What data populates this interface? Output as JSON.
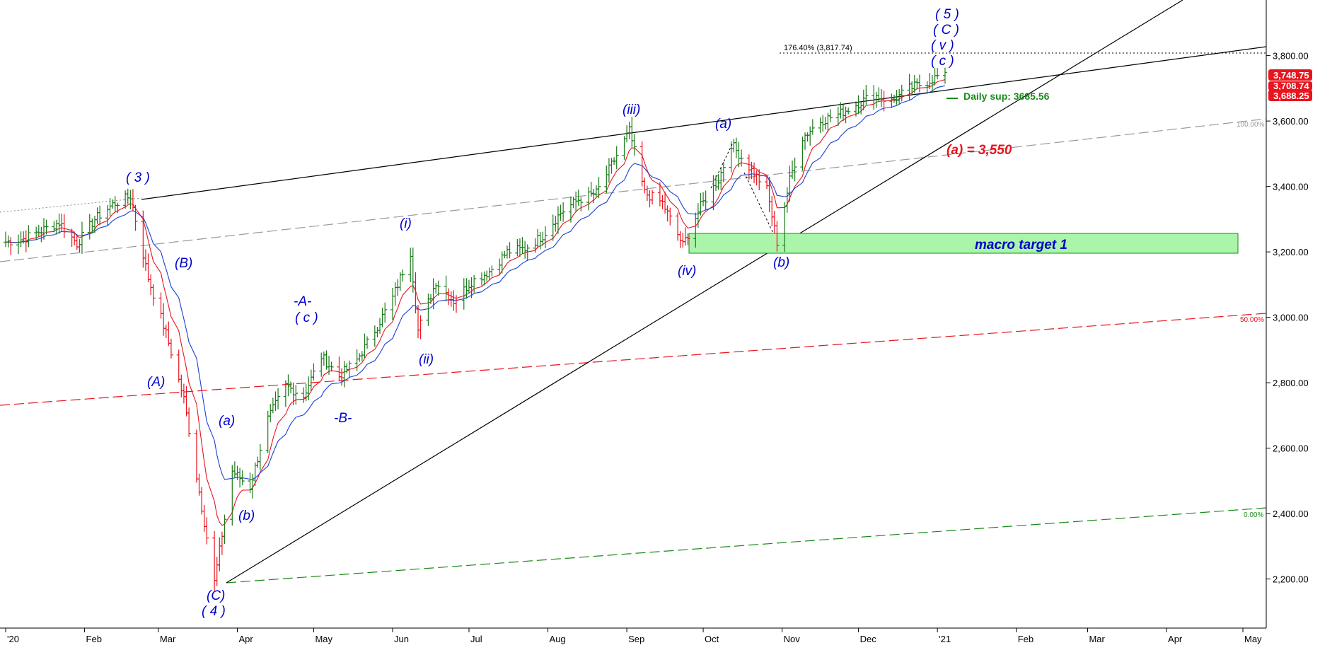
{
  "chart_data": {
    "type": "candlestick",
    "title": "",
    "x_axis": {
      "labels": [
        "'20",
        "Feb",
        "Mar",
        "Apr",
        "May",
        "Jun",
        "Jul",
        "Aug",
        "Sep",
        "Oct",
        "Nov",
        "Dec",
        "'21",
        "Feb",
        "Mar",
        "Apr",
        "May"
      ],
      "dates": [
        "2020-01-01",
        "2020-02-01",
        "2020-03-01",
        "2020-04-01",
        "2020-05-01",
        "2020-06-01",
        "2020-07-01",
        "2020-08-01",
        "2020-09-01",
        "2020-10-01",
        "2020-11-01",
        "2020-12-01",
        "2021-01-01",
        "2021-02-01",
        "2021-03-01",
        "2021-04-01",
        "2021-05-01"
      ]
    },
    "y_axis": {
      "ticks": [
        "2,200.00",
        "2,400.00",
        "2,600.00",
        "2,800.00",
        "3,000.00",
        "3,200.00",
        "3,400.00",
        "3,600.00",
        "3,800.00"
      ],
      "tick_values": [
        2200,
        2400,
        2600,
        2800,
        3000,
        3200,
        3400,
        3600,
        3800
      ],
      "range": [
        2050,
        3970
      ]
    },
    "price_labels": [
      {
        "text": "3,748.75",
        "value": 3748.75,
        "color": "#e8141e"
      },
      {
        "text": "3,708.74",
        "value": 3708.74,
        "color": "#e8141e"
      },
      {
        "text": "3,688.25",
        "value": 3688.25,
        "color": "#e8141e"
      }
    ],
    "series": [
      {
        "date": "2020-01-01",
        "close": 3230
      },
      {
        "date": "2020-01-08",
        "close": 3240
      },
      {
        "date": "2020-01-15",
        "close": 3265
      },
      {
        "date": "2020-01-22",
        "close": 3290
      },
      {
        "date": "2020-01-29",
        "close": 3225
      },
      {
        "date": "2020-02-05",
        "close": 3300
      },
      {
        "date": "2020-02-12",
        "close": 3345
      },
      {
        "date": "2020-02-19",
        "close": 3370
      },
      {
        "date": "2020-02-26",
        "close": 3120
      },
      {
        "date": "2020-03-04",
        "close": 2950
      },
      {
        "date": "2020-03-11",
        "close": 2750
      },
      {
        "date": "2020-03-18",
        "close": 2420
      },
      {
        "date": "2020-03-23",
        "close": 2190
      },
      {
        "date": "2020-03-30",
        "close": 2530
      },
      {
        "date": "2020-04-06",
        "close": 2480
      },
      {
        "date": "2020-04-13",
        "close": 2690
      },
      {
        "date": "2020-04-20",
        "close": 2790
      },
      {
        "date": "2020-04-27",
        "close": 2760
      },
      {
        "date": "2020-05-04",
        "close": 2880
      },
      {
        "date": "2020-05-11",
        "close": 2820
      },
      {
        "date": "2020-05-18",
        "close": 2870
      },
      {
        "date": "2020-05-25",
        "close": 2960
      },
      {
        "date": "2020-06-01",
        "close": 3060
      },
      {
        "date": "2020-06-08",
        "close": 3200
      },
      {
        "date": "2020-06-11",
        "close": 2960
      },
      {
        "date": "2020-06-18",
        "close": 3110
      },
      {
        "date": "2020-06-25",
        "close": 3050
      },
      {
        "date": "2020-07-02",
        "close": 3110
      },
      {
        "date": "2020-07-09",
        "close": 3140
      },
      {
        "date": "2020-07-16",
        "close": 3200
      },
      {
        "date": "2020-07-23",
        "close": 3210
      },
      {
        "date": "2020-07-30",
        "close": 3250
      },
      {
        "date": "2020-08-06",
        "close": 3320
      },
      {
        "date": "2020-08-13",
        "close": 3360
      },
      {
        "date": "2020-08-20",
        "close": 3380
      },
      {
        "date": "2020-08-27",
        "close": 3480
      },
      {
        "date": "2020-09-02",
        "close": 3570
      },
      {
        "date": "2020-09-08",
        "close": 3380
      },
      {
        "date": "2020-09-15",
        "close": 3350
      },
      {
        "date": "2020-09-23",
        "close": 3220
      },
      {
        "date": "2020-09-30",
        "close": 3340
      },
      {
        "date": "2020-10-07",
        "close": 3420
      },
      {
        "date": "2020-10-12",
        "close": 3530
      },
      {
        "date": "2020-10-19",
        "close": 3460
      },
      {
        "date": "2020-10-26",
        "close": 3390
      },
      {
        "date": "2020-10-30",
        "close": 3230
      },
      {
        "date": "2020-11-04",
        "close": 3420
      },
      {
        "date": "2020-11-09",
        "close": 3550
      },
      {
        "date": "2020-11-16",
        "close": 3600
      },
      {
        "date": "2020-11-23",
        "close": 3620
      },
      {
        "date": "2020-11-30",
        "close": 3650
      },
      {
        "date": "2020-12-07",
        "close": 3680
      },
      {
        "date": "2020-12-14",
        "close": 3660
      },
      {
        "date": "2020-12-21",
        "close": 3700
      },
      {
        "date": "2020-12-28",
        "close": 3720
      },
      {
        "date": "2021-01-04",
        "close": 3748.75
      }
    ],
    "annotations": [
      {
        "text": "( 3 )",
        "color": "#0000cc"
      },
      {
        "text": "(B)",
        "color": "#0000cc"
      },
      {
        "text": "(A)",
        "color": "#0000cc"
      },
      {
        "text": "(a)",
        "color": "#0000cc"
      },
      {
        "text": "(b)",
        "color": "#0000cc"
      },
      {
        "text": "(C)",
        "color": "#0000cc"
      },
      {
        "text": "( 4 )",
        "color": "#0000cc"
      },
      {
        "text": "-A-",
        "color": "#0000cc"
      },
      {
        "text": "( c )",
        "color": "#0000cc"
      },
      {
        "text": "-B-",
        "color": "#0000cc"
      },
      {
        "text": "(i)",
        "color": "#0000cc"
      },
      {
        "text": "(ii)",
        "color": "#0000cc"
      },
      {
        "text": "(iii)",
        "color": "#0000cc"
      },
      {
        "text": "(iv)",
        "color": "#0000cc"
      },
      {
        "text": "(a)",
        "color": "#0000cc"
      },
      {
        "text": "(b)",
        "color": "#0000cc"
      },
      {
        "text": "( 5 )",
        "color": "#0000cc"
      },
      {
        "text": "( C )",
        "color": "#0000cc"
      },
      {
        "text": "( v )",
        "color": "#0000cc"
      },
      {
        "text": "( c )",
        "color": "#0000cc"
      },
      {
        "text": "(a) = 3,550",
        "color": "#e8141e"
      },
      {
        "text": "Daily sup: 3685.56",
        "color": "#1a8a1a"
      },
      {
        "text": "macro target 1",
        "color": "#0000cc"
      },
      {
        "text": "176.40% (3,817.74)",
        "color": "#000000"
      }
    ],
    "fib_labels": [
      {
        "text": "100.00%",
        "color": "#999999"
      },
      {
        "text": "50.00%",
        "color": "#e8141e"
      },
      {
        "text": "0.00%",
        "color": "#1a8a1a"
      }
    ],
    "zone": {
      "label": "macro target 1",
      "low": 3190,
      "high": 3250,
      "color": "#aaf5aa"
    },
    "colors": {
      "up": "#1a7a1a",
      "down": "#e8141e",
      "ma_fast": "#e8141e",
      "ma_slow": "#1a3fd6",
      "wave_labels": "#0000cc"
    },
    "legend": "none",
    "grid": false
  }
}
